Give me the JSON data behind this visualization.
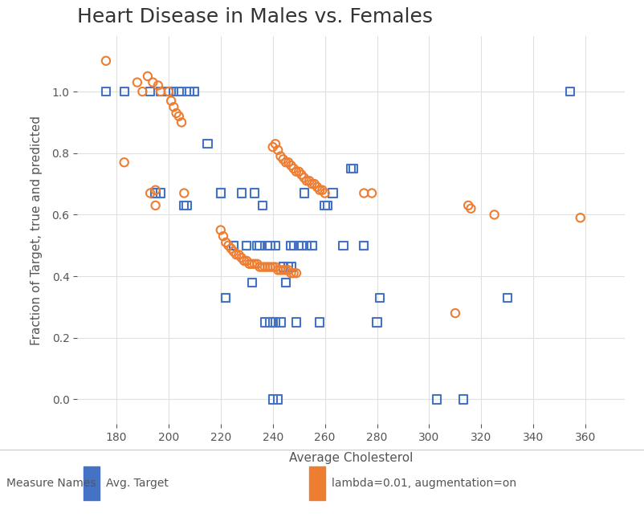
{
  "title": "Heart Disease in Males vs. Females",
  "xlabel": "Average Cholesterol",
  "ylabel": "Fraction of Target, true and predicted",
  "xlim": [
    165,
    375
  ],
  "ylim": [
    -0.08,
    1.18
  ],
  "xticks": [
    180,
    200,
    220,
    240,
    260,
    280,
    300,
    320,
    340,
    360
  ],
  "yticks": [
    0.0,
    0.2,
    0.4,
    0.6,
    0.8,
    1.0
  ],
  "bg_color": "#ffffff",
  "plot_bg_color": "#ffffff",
  "grid_color": "#e0e0e0",
  "blue_color": "#4472C4",
  "orange_color": "#ED7D31",
  "title_fontsize": 18,
  "label_fontsize": 11,
  "tick_fontsize": 10,
  "legend_label_blue": "Avg. Target",
  "legend_label_orange": "lambda=0.01, augmentation=on",
  "legend_title": "Measure Names",
  "blue_squares": [
    [
      176,
      1.0
    ],
    [
      183,
      1.0
    ],
    [
      193,
      1.0
    ],
    [
      195,
      0.67
    ],
    [
      195,
      0.67
    ],
    [
      197,
      1.0
    ],
    [
      197,
      0.67
    ],
    [
      200,
      1.0
    ],
    [
      200,
      1.0
    ],
    [
      202,
      1.0
    ],
    [
      204,
      1.0
    ],
    [
      205,
      1.0
    ],
    [
      206,
      0.63
    ],
    [
      207,
      0.63
    ],
    [
      208,
      1.0
    ],
    [
      210,
      1.0
    ],
    [
      210,
      1.0
    ],
    [
      215,
      0.83
    ],
    [
      220,
      0.67
    ],
    [
      220,
      0.67
    ],
    [
      222,
      0.33
    ],
    [
      222,
      0.33
    ],
    [
      225,
      0.5
    ],
    [
      225,
      0.5
    ],
    [
      228,
      0.67
    ],
    [
      230,
      0.5
    ],
    [
      230,
      0.5
    ],
    [
      232,
      0.38
    ],
    [
      233,
      0.67
    ],
    [
      234,
      0.5
    ],
    [
      235,
      0.5
    ],
    [
      236,
      0.63
    ],
    [
      237,
      0.25
    ],
    [
      238,
      0.5
    ],
    [
      239,
      0.25
    ],
    [
      239,
      0.5
    ],
    [
      240,
      0.0
    ],
    [
      240,
      0.25
    ],
    [
      241,
      0.25
    ],
    [
      241,
      0.5
    ],
    [
      242,
      0.0
    ],
    [
      243,
      0.25
    ],
    [
      244,
      0.43
    ],
    [
      244,
      0.43
    ],
    [
      245,
      0.38
    ],
    [
      245,
      0.38
    ],
    [
      246,
      0.43
    ],
    [
      247,
      0.43
    ],
    [
      247,
      0.5
    ],
    [
      248,
      0.5
    ],
    [
      249,
      0.25
    ],
    [
      250,
      0.5
    ],
    [
      251,
      0.5
    ],
    [
      252,
      0.67
    ],
    [
      253,
      0.5
    ],
    [
      255,
      0.5
    ],
    [
      255,
      0.5
    ],
    [
      258,
      0.25
    ],
    [
      260,
      0.63
    ],
    [
      261,
      0.63
    ],
    [
      263,
      0.67
    ],
    [
      267,
      0.5
    ],
    [
      270,
      0.75
    ],
    [
      271,
      0.75
    ],
    [
      275,
      0.5
    ],
    [
      275,
      0.5
    ],
    [
      280,
      0.25
    ],
    [
      281,
      0.33
    ],
    [
      303,
      0.0
    ],
    [
      313,
      0.0
    ],
    [
      330,
      0.33
    ],
    [
      354,
      1.0
    ]
  ],
  "orange_circles": [
    [
      176,
      1.1
    ],
    [
      183,
      0.77
    ],
    [
      188,
      1.03
    ],
    [
      190,
      1.0
    ],
    [
      192,
      1.05
    ],
    [
      194,
      1.03
    ],
    [
      196,
      1.02
    ],
    [
      197,
      1.0
    ],
    [
      200,
      1.0
    ],
    [
      201,
      0.97
    ],
    [
      202,
      0.95
    ],
    [
      203,
      0.93
    ],
    [
      204,
      0.92
    ],
    [
      205,
      0.9
    ],
    [
      206,
      0.67
    ],
    [
      193,
      0.67
    ],
    [
      195,
      0.68
    ],
    [
      195,
      0.63
    ],
    [
      220,
      0.55
    ],
    [
      221,
      0.53
    ],
    [
      222,
      0.51
    ],
    [
      223,
      0.5
    ],
    [
      224,
      0.49
    ],
    [
      225,
      0.48
    ],
    [
      226,
      0.47
    ],
    [
      227,
      0.47
    ],
    [
      228,
      0.46
    ],
    [
      229,
      0.45
    ],
    [
      230,
      0.45
    ],
    [
      231,
      0.44
    ],
    [
      232,
      0.44
    ],
    [
      233,
      0.44
    ],
    [
      234,
      0.44
    ],
    [
      235,
      0.43
    ],
    [
      236,
      0.43
    ],
    [
      237,
      0.43
    ],
    [
      238,
      0.43
    ],
    [
      239,
      0.43
    ],
    [
      240,
      0.43
    ],
    [
      241,
      0.43
    ],
    [
      242,
      0.42
    ],
    [
      243,
      0.42
    ],
    [
      244,
      0.42
    ],
    [
      245,
      0.42
    ],
    [
      246,
      0.42
    ],
    [
      247,
      0.41
    ],
    [
      248,
      0.41
    ],
    [
      249,
      0.41
    ],
    [
      240,
      0.82
    ],
    [
      241,
      0.83
    ],
    [
      242,
      0.81
    ],
    [
      243,
      0.79
    ],
    [
      244,
      0.78
    ],
    [
      245,
      0.77
    ],
    [
      246,
      0.77
    ],
    [
      247,
      0.76
    ],
    [
      248,
      0.75
    ],
    [
      249,
      0.74
    ],
    [
      250,
      0.74
    ],
    [
      251,
      0.73
    ],
    [
      252,
      0.72
    ],
    [
      253,
      0.71
    ],
    [
      254,
      0.71
    ],
    [
      255,
      0.7
    ],
    [
      256,
      0.7
    ],
    [
      257,
      0.69
    ],
    [
      258,
      0.68
    ],
    [
      259,
      0.68
    ],
    [
      260,
      0.67
    ],
    [
      275,
      0.67
    ],
    [
      278,
      0.67
    ],
    [
      315,
      0.63
    ],
    [
      316,
      0.62
    ],
    [
      325,
      0.6
    ],
    [
      358,
      0.59
    ],
    [
      310,
      0.28
    ]
  ]
}
